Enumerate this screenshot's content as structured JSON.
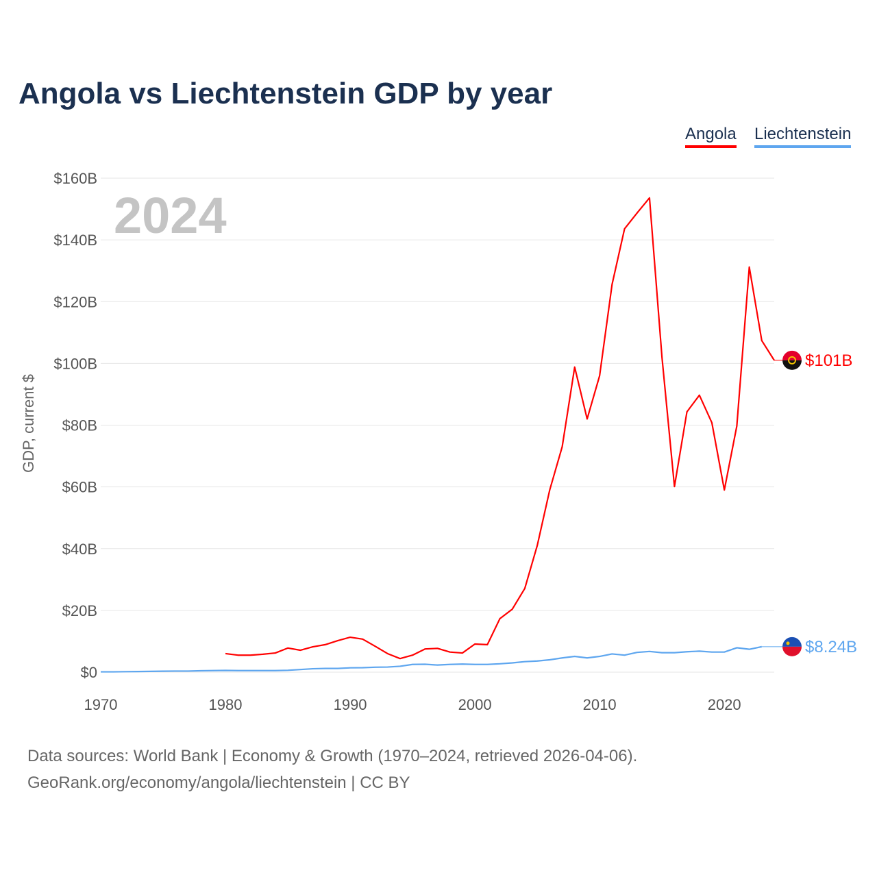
{
  "title": "Angola vs Liechtenstein GDP by year",
  "year_label": "2024",
  "footer": {
    "line1": "Data sources: World Bank | Economy & Growth (1970–2024, retrieved 2026-04-06).",
    "line2": "GeoRank.org/economy/angola/liechtenstein | CC BY"
  },
  "chart_data": {
    "type": "line",
    "title": "Angola vs Liechtenstein GDP by year",
    "xlabel": "",
    "ylabel": "GDP, current $",
    "xlim": [
      1970,
      2024
    ],
    "ylim": [
      0,
      160
    ],
    "xticks": [
      1970,
      1980,
      1990,
      2000,
      2010,
      2020
    ],
    "yticks": [
      0,
      20,
      40,
      60,
      80,
      100,
      120,
      140,
      160
    ],
    "ytick_labels": [
      "$0",
      "$20B",
      "$40B",
      "$60B",
      "$80B",
      "$100B",
      "$120B",
      "$140B",
      "$160B"
    ],
    "grid": true,
    "legend": "top-right",
    "x": [
      1970,
      1971,
      1972,
      1973,
      1974,
      1975,
      1976,
      1977,
      1978,
      1979,
      1980,
      1981,
      1982,
      1983,
      1984,
      1985,
      1986,
      1987,
      1988,
      1989,
      1990,
      1991,
      1992,
      1993,
      1994,
      1995,
      1996,
      1997,
      1998,
      1999,
      2000,
      2001,
      2002,
      2003,
      2004,
      2005,
      2006,
      2007,
      2008,
      2009,
      2010,
      2011,
      2012,
      2013,
      2014,
      2015,
      2016,
      2017,
      2018,
      2019,
      2020,
      2021,
      2022,
      2023,
      2024
    ],
    "series": [
      {
        "name": "Angola",
        "color": "#ff0000",
        "end_label": "$101B",
        "values": [
          null,
          null,
          null,
          null,
          null,
          null,
          null,
          null,
          null,
          null,
          6.0,
          5.5,
          5.5,
          5.8,
          6.2,
          7.8,
          7.1,
          8.2,
          8.9,
          10.2,
          11.3,
          10.7,
          8.4,
          6.0,
          4.4,
          5.5,
          7.5,
          7.7,
          6.5,
          6.2,
          9.1,
          8.9,
          17.3,
          20.4,
          27.1,
          41.0,
          59.0,
          73.0,
          98.8,
          82.0,
          96.0,
          125.6,
          143.6,
          148.7,
          153.6,
          102.0,
          60.1,
          84.3,
          89.7,
          80.8,
          59.0,
          79.7,
          131.2,
          107.4,
          101.0
        ]
      },
      {
        "name": "Liechtenstein",
        "color": "#5ea6ef",
        "end_label": "$8.24B",
        "values": [
          0.1,
          0.1,
          0.15,
          0.2,
          0.25,
          0.3,
          0.35,
          0.35,
          0.45,
          0.5,
          0.55,
          0.5,
          0.5,
          0.5,
          0.5,
          0.6,
          0.85,
          1.1,
          1.2,
          1.2,
          1.4,
          1.45,
          1.6,
          1.65,
          1.9,
          2.5,
          2.55,
          2.3,
          2.5,
          2.6,
          2.5,
          2.5,
          2.7,
          3.0,
          3.4,
          3.6,
          4.0,
          4.6,
          5.1,
          4.6,
          5.1,
          5.9,
          5.5,
          6.4,
          6.7,
          6.3,
          6.3,
          6.6,
          6.8,
          6.5,
          6.5,
          7.9,
          7.4,
          8.24,
          null
        ]
      }
    ]
  }
}
